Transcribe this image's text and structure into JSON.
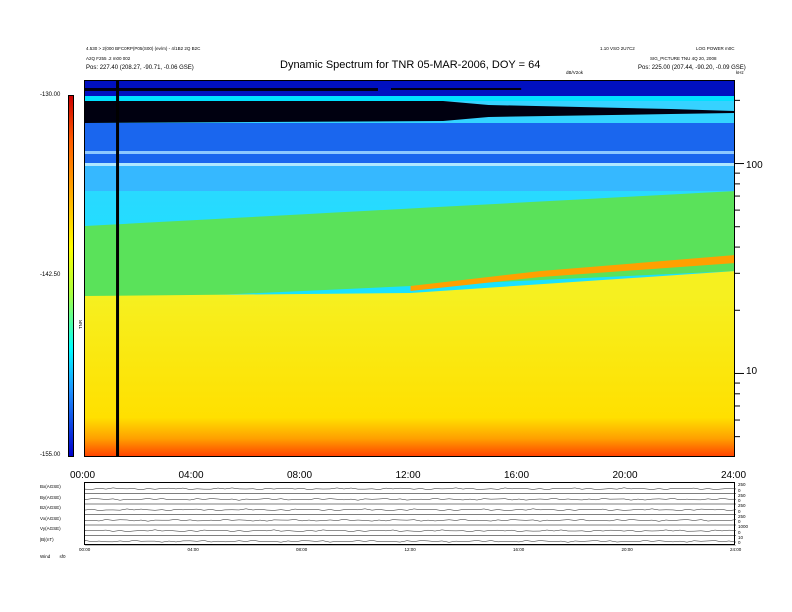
{
  "header": {
    "left_lines": [
      "4.530 > 2(000 BFC0RP(P05(S00) (ev/m) - 4/1B2 2Q B2C",
      "A2Q F255 .2 m00 002"
    ],
    "left_pos_label": "Pos:",
    "left_pos_value": "227.40 (208.27, -90.71, -0.06 GSE)",
    "right_lines": [
      "1.10 VSO 2U7C2",
      "LOG POWER m0C",
      "SIG_PICTURE  TNU 4Q 20, 2008"
    ],
    "right_pos_label": "Pos:",
    "right_pos_value": "225.00 (207.44, -90.20, -0.09 GSE)",
    "units_label": "dB/V2ok",
    "hz_label": "kHz"
  },
  "chart_data": {
    "type": "heatmap",
    "title": "Dynamic Spectrum for TNR 05-MAR-2006, DOY = 64",
    "xlabel": "",
    "ylabel": "",
    "x_ticks": [
      "00:00",
      "04:00",
      "08:00",
      "12:00",
      "16:00",
      "20:00",
      "24:00"
    ],
    "x_range": [
      0,
      24
    ],
    "y_scale": "log",
    "y_ticks": [
      "100",
      "10"
    ],
    "y_tick_values": [
      100,
      10
    ],
    "y_range": [
      4,
      250
    ],
    "colorbar": {
      "label": "TNR",
      "ticks": [
        "-130.00",
        "-142.50",
        "-155.00"
      ],
      "tick_values": [
        -130,
        -142.5,
        -155
      ],
      "range": [
        -155,
        -130
      ],
      "colors": [
        "#cc0000",
        "#ff5a00",
        "#ffa000",
        "#ffff00",
        "#a8ff40",
        "#00ffff",
        "#1e90ff",
        "#0000cc"
      ]
    },
    "data_gap_time": 1.2,
    "bands_top_to_bottom": [
      {
        "name": "",
        "color": "#0010c0"
      },
      {
        "name": "",
        "color": "#000010"
      },
      {
        "name": "",
        "color": "#1a66ee"
      },
      {
        "name": "",
        "color": "#00ddff"
      },
      {
        "name": "",
        "color": "#5ae25a"
      },
      {
        "name": "",
        "color": "#f6f020"
      },
      {
        "name": "",
        "color": "#ff7800"
      }
    ]
  },
  "lower_panel": {
    "rows": [
      {
        "label": "Bx(AGSE)",
        "right_ticks": [
          "250",
          "0"
        ]
      },
      {
        "label": "By(AGSE)",
        "right_ticks": [
          "250",
          "0"
        ]
      },
      {
        "label": "Bz(AGSE)",
        "right_ticks": [
          "250",
          "0"
        ]
      },
      {
        "label": "Vx(AGSE)",
        "right_ticks": [
          "250",
          "0"
        ]
      },
      {
        "label": "Vy(AGSE)",
        "right_ticks": [
          "1000",
          "0"
        ]
      },
      {
        "label": "|B|(nT)",
        "right_ticks": [
          "10",
          "0"
        ]
      }
    ],
    "x_ticks": [
      "00:00",
      "04:00",
      "08:00",
      "12:00",
      "16:00",
      "20:00",
      "24:00"
    ],
    "footer_label": "Wind",
    "footer_value": "sf0"
  }
}
